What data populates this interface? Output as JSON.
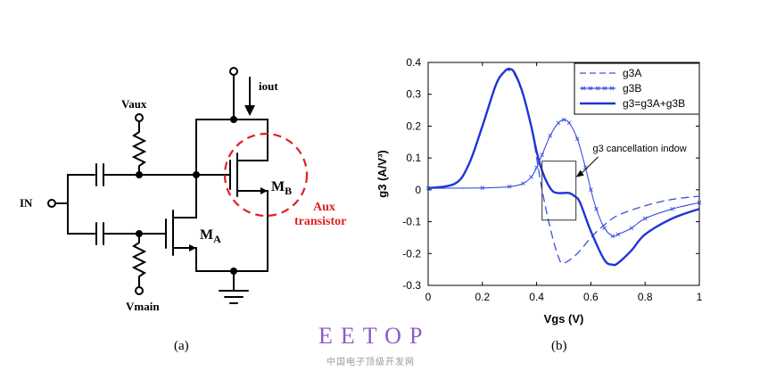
{
  "circuit": {
    "labels": {
      "vaux": "Vaux",
      "vmain": "Vmain",
      "in": "IN",
      "iout": "iout",
      "ma_main": "M",
      "ma_sub": "A",
      "mb_main": "M",
      "mb_sub": "B",
      "aux_line1": "Aux",
      "aux_line2": "transistor"
    },
    "aux_color": "#e02020",
    "wire_color": "#000000"
  },
  "chart_data": {
    "type": "line",
    "xlabel": "Vgs (V)",
    "ylabel": "g3 (A/V³)",
    "xlim": [
      0,
      1
    ],
    "ylim": [
      -0.3,
      0.4
    ],
    "xticks": [
      "0",
      "0.2",
      "0.4",
      "0.6",
      "0.8",
      "1"
    ],
    "yticks": [
      "0.4",
      "0.3",
      "0.2",
      "0.1",
      "0",
      "-0.1",
      "-0.2",
      "-0.3"
    ],
    "grid": false,
    "legend_position": "top-right",
    "series": [
      {
        "name": "g3A",
        "style": "dashed",
        "color": "#3a4fe0",
        "x": [
          0,
          0.1,
          0.15,
          0.2,
          0.25,
          0.28,
          0.3,
          0.32,
          0.35,
          0.38,
          0.4,
          0.42,
          0.45,
          0.48,
          0.5,
          0.55,
          0.6,
          0.65,
          0.7,
          0.8,
          0.9,
          1.0
        ],
        "y": [
          0.005,
          0.02,
          0.08,
          0.2,
          0.33,
          0.37,
          0.375,
          0.36,
          0.3,
          0.2,
          0.1,
          0.0,
          -0.12,
          -0.21,
          -0.23,
          -0.2,
          -0.15,
          -0.11,
          -0.08,
          -0.05,
          -0.03,
          -0.02
        ]
      },
      {
        "name": "g3B",
        "style": "cross-markers",
        "color": "#3a4fe0",
        "x": [
          0,
          0.2,
          0.3,
          0.35,
          0.38,
          0.4,
          0.42,
          0.45,
          0.48,
          0.5,
          0.52,
          0.55,
          0.58,
          0.6,
          0.62,
          0.65,
          0.68,
          0.7,
          0.75,
          0.8,
          0.9,
          1.0
        ],
        "y": [
          0.005,
          0.006,
          0.01,
          0.02,
          0.04,
          0.07,
          0.11,
          0.17,
          0.21,
          0.22,
          0.21,
          0.16,
          0.07,
          0.0,
          -0.06,
          -0.12,
          -0.145,
          -0.14,
          -0.12,
          -0.09,
          -0.06,
          -0.04
        ]
      },
      {
        "name": "g3=g3A+g3B",
        "style": "solid",
        "color": "#1f35d8",
        "x": [
          0,
          0.1,
          0.15,
          0.2,
          0.25,
          0.28,
          0.3,
          0.32,
          0.35,
          0.38,
          0.4,
          0.42,
          0.44,
          0.46,
          0.48,
          0.5,
          0.52,
          0.54,
          0.56,
          0.6,
          0.65,
          0.68,
          0.7,
          0.75,
          0.8,
          0.9,
          1.0
        ],
        "y": [
          0.005,
          0.02,
          0.08,
          0.2,
          0.33,
          0.37,
          0.38,
          0.365,
          0.3,
          0.2,
          0.12,
          0.06,
          0.02,
          -0.005,
          -0.01,
          -0.01,
          -0.01,
          -0.02,
          -0.04,
          -0.13,
          -0.22,
          -0.235,
          -0.23,
          -0.19,
          -0.14,
          -0.09,
          -0.06
        ]
      }
    ],
    "annotation": {
      "text": "g3 cancellation indow",
      "box_x": [
        0.42,
        0.545
      ],
      "box_y": [
        -0.095,
        0.09
      ],
      "text_at": [
        0.62,
        0.12
      ],
      "arrow_to": [
        0.545,
        0.04
      ]
    }
  },
  "captions": {
    "a": "(a)",
    "b": "(b)"
  },
  "watermark": {
    "title": "EETOP",
    "subtitle": "中国电子顶级开发网"
  }
}
